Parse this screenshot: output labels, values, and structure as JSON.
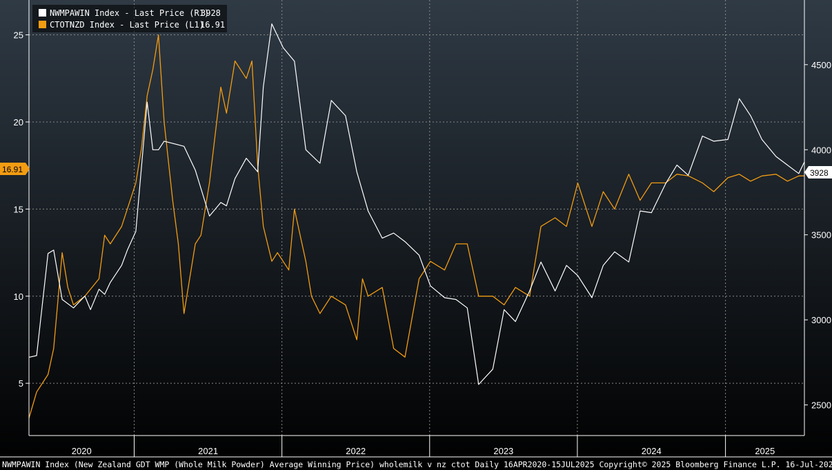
{
  "colors": {
    "white_series": "#ffffff",
    "orange_series": "#f39c12",
    "grid": "#8a8a8a",
    "background_top": "#2f3a45",
    "background_bottom": "#000000"
  },
  "legend": [
    {
      "name": "NWMPAWIN Index - Last Price (R1)",
      "value": "3928",
      "color": "#ffffff"
    },
    {
      "name": "CTOTNZD Index - Last Price (L1)",
      "value": "16.91",
      "color": "#f39c12"
    }
  ],
  "last_value_tags": {
    "left": "16.91",
    "right": "3928"
  },
  "footer": "NWMPAWIN Index (New Zealand GDT WMP (Whole Milk Powder) Average Winning Price) wholemilk v nz ctot  Daily 16APR2020-15JUL2025 Copyright© 2025 Bloomberg Finance L.P. 16-Jul-2025 07:11:59",
  "chart_data": {
    "type": "line",
    "title": "",
    "x_range": [
      "2020-04-16",
      "2025-07-15"
    ],
    "x_tick_labels": [
      "2020",
      "2021",
      "2022",
      "2023",
      "2024",
      "2025"
    ],
    "y_left": {
      "ticks": [
        5,
        10,
        15,
        20,
        25
      ],
      "range": [
        2,
        27
      ]
    },
    "y_right": {
      "ticks": [
        2500,
        3000,
        3500,
        4000,
        4500
      ],
      "range": [
        2320,
        4880
      ]
    },
    "grid": true,
    "legend_position": "top-left",
    "series": [
      {
        "name": "NWMPAWIN Index - Last Price (R1)",
        "axis": "right",
        "color": "#ffffff",
        "last": 3928,
        "x": [
          "2020-04-16",
          "2020-05-05",
          "2020-06-02",
          "2020-06-16",
          "2020-07-07",
          "2020-08-04",
          "2020-09-01",
          "2020-09-15",
          "2020-10-06",
          "2020-10-20",
          "2020-11-03",
          "2020-12-01",
          "2020-12-15",
          "2021-01-05",
          "2021-02-02",
          "2021-02-16",
          "2021-03-02",
          "2021-03-16",
          "2021-05-04",
          "2021-06-01",
          "2021-07-06",
          "2021-08-03",
          "2021-08-17",
          "2021-09-07",
          "2021-10-05",
          "2021-11-02",
          "2021-11-16",
          "2021-12-07",
          "2022-01-04",
          "2022-02-01",
          "2022-03-01",
          "2022-04-05",
          "2022-05-03",
          "2022-06-07",
          "2022-07-05",
          "2022-08-02",
          "2022-09-06",
          "2022-10-04",
          "2022-11-01",
          "2022-12-06",
          "2023-01-03",
          "2023-02-07",
          "2023-03-07",
          "2023-04-04",
          "2023-05-02",
          "2023-06-06",
          "2023-07-04",
          "2023-08-01",
          "2023-09-05",
          "2023-10-03",
          "2023-11-07",
          "2023-12-05",
          "2024-01-02",
          "2024-02-06",
          "2024-03-05",
          "2024-04-02",
          "2024-05-07",
          "2024-06-04",
          "2024-07-02",
          "2024-08-06",
          "2024-09-03",
          "2024-10-01",
          "2024-11-05",
          "2024-12-03",
          "2025-01-07",
          "2025-02-04",
          "2025-03-04",
          "2025-04-01",
          "2025-05-06",
          "2025-06-03",
          "2025-07-01",
          "2025-07-15"
        ],
        "y": [
          2780,
          2790,
          3390,
          3410,
          3120,
          3070,
          3140,
          3060,
          3180,
          3150,
          3220,
          3320,
          3410,
          3520,
          4280,
          4000,
          4000,
          4050,
          4020,
          3880,
          3610,
          3690,
          3670,
          3830,
          3950,
          3870,
          4370,
          4740,
          4600,
          4520,
          4000,
          3920,
          4290,
          4200,
          3870,
          3640,
          3480,
          3510,
          3460,
          3380,
          3200,
          3130,
          3120,
          3070,
          2620,
          2710,
          3060,
          2990,
          3170,
          3340,
          3170,
          3320,
          3260,
          3130,
          3320,
          3400,
          3340,
          3640,
          3630,
          3800,
          3910,
          3850,
          4080,
          4050,
          4060,
          4300,
          4200,
          4060,
          3960,
          3910,
          3860,
          3928
        ]
      },
      {
        "name": "CTOTNZD Index - Last Price (L1)",
        "axis": "left",
        "color": "#f39c12",
        "last": 16.91,
        "x": [
          "2020-04-16",
          "2020-05-05",
          "2020-06-02",
          "2020-06-16",
          "2020-07-07",
          "2020-07-21",
          "2020-08-04",
          "2020-09-01",
          "2020-10-06",
          "2020-10-20",
          "2020-11-03",
          "2020-12-01",
          "2021-01-05",
          "2021-01-19",
          "2021-02-02",
          "2021-02-16",
          "2021-03-02",
          "2021-03-16",
          "2021-04-06",
          "2021-04-20",
          "2021-05-04",
          "2021-06-01",
          "2021-06-15",
          "2021-07-06",
          "2021-08-03",
          "2021-08-17",
          "2021-09-07",
          "2021-10-05",
          "2021-10-19",
          "2021-11-02",
          "2021-11-16",
          "2021-12-07",
          "2021-12-21",
          "2022-01-04",
          "2022-01-18",
          "2022-02-01",
          "2022-03-01",
          "2022-03-15",
          "2022-04-05",
          "2022-05-03",
          "2022-06-07",
          "2022-07-05",
          "2022-07-19",
          "2022-08-02",
          "2022-09-06",
          "2022-10-04",
          "2022-11-01",
          "2022-12-06",
          "2023-01-03",
          "2023-02-07",
          "2023-03-07",
          "2023-04-04",
          "2023-05-02",
          "2023-06-06",
          "2023-07-04",
          "2023-08-01",
          "2023-09-05",
          "2023-10-03",
          "2023-11-07",
          "2023-12-05",
          "2024-01-02",
          "2024-02-06",
          "2024-03-05",
          "2024-04-02",
          "2024-05-07",
          "2024-06-04",
          "2024-07-02",
          "2024-08-06",
          "2024-09-03",
          "2024-10-01",
          "2024-11-05",
          "2024-12-03",
          "2025-01-07",
          "2025-02-04",
          "2025-03-04",
          "2025-04-01",
          "2025-05-06",
          "2025-06-03",
          "2025-07-01",
          "2025-07-15"
        ],
        "y": [
          3.0,
          4.5,
          5.5,
          7.0,
          12.5,
          10.5,
          9.5,
          10.0,
          11.0,
          13.5,
          13.0,
          14.0,
          16.5,
          18.5,
          21.5,
          23.0,
          25.0,
          20.0,
          15.5,
          13.0,
          9.0,
          13.0,
          13.5,
          16.5,
          22.0,
          20.5,
          23.5,
          22.5,
          23.5,
          17.5,
          14.0,
          12.0,
          12.5,
          12.0,
          11.5,
          15.0,
          12.0,
          10.0,
          9.0,
          10.0,
          9.5,
          7.5,
          11.0,
          10.0,
          10.5,
          7.0,
          6.5,
          11.0,
          12.0,
          11.5,
          13.0,
          13.0,
          10.0,
          10.0,
          9.5,
          10.5,
          10.0,
          14.0,
          14.5,
          14.0,
          16.5,
          14.0,
          16.0,
          15.0,
          17.0,
          15.5,
          16.5,
          16.5,
          17.0,
          16.91,
          16.5,
          16.0,
          16.8,
          17.0,
          16.6,
          16.9,
          17.0,
          16.6,
          16.9,
          16.91
        ]
      }
    ]
  }
}
